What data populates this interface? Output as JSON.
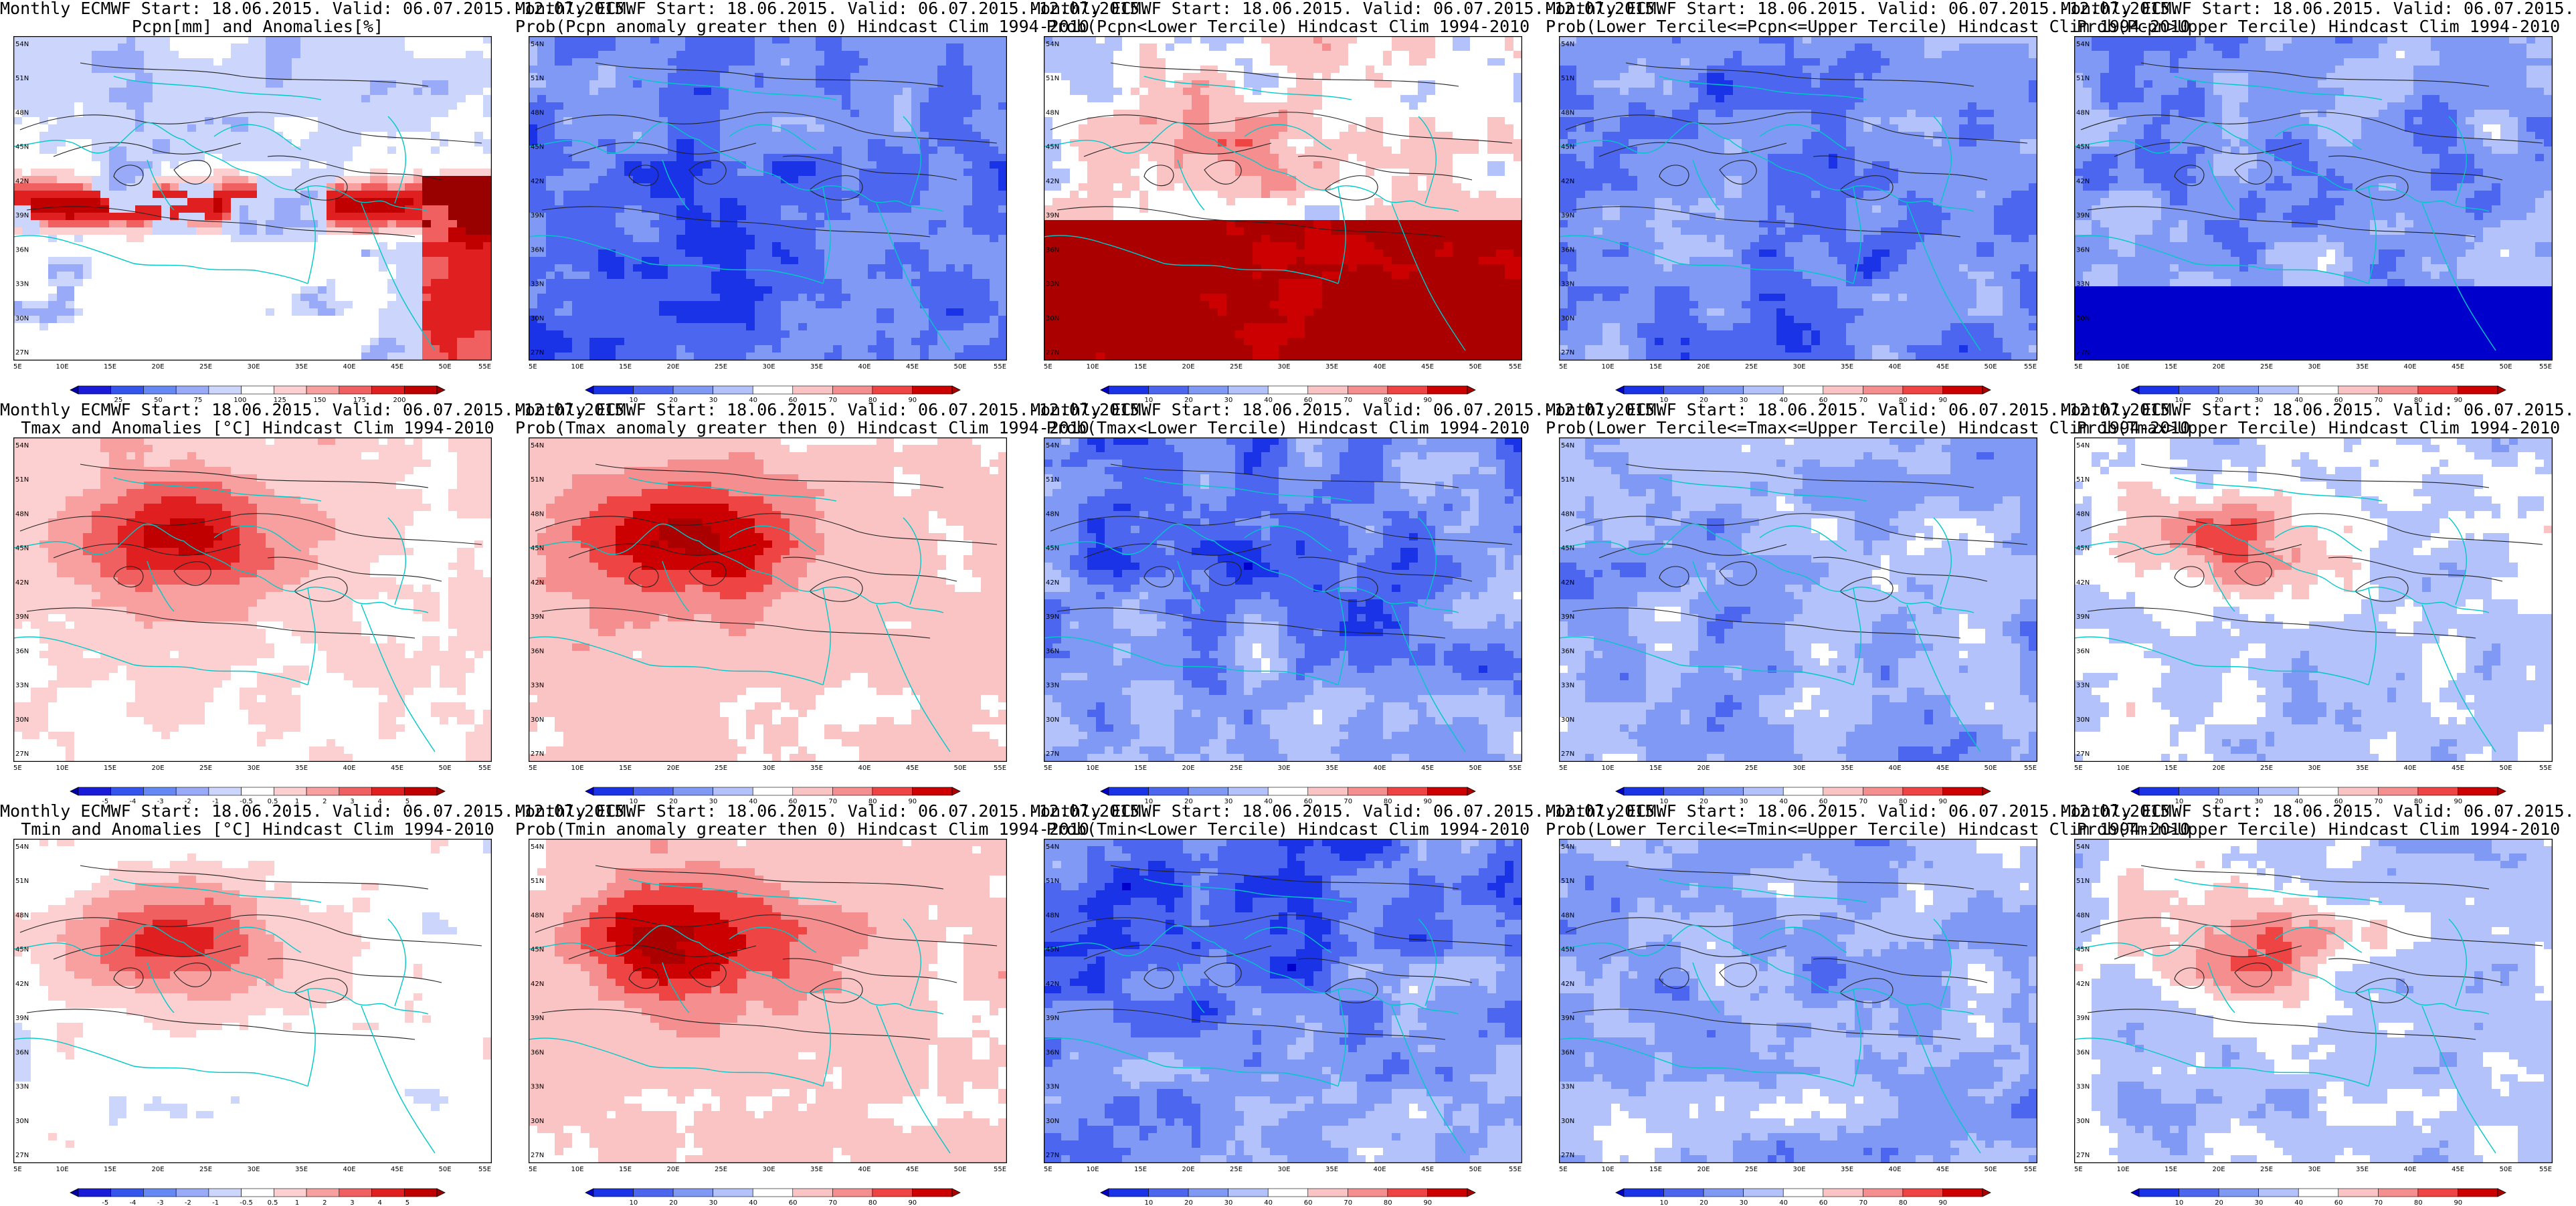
{
  "panels": [
    {
      "line1": "Monthly ECMWF Start: 18.06.2015. Valid: 06.07.2015.-12.07.2015.",
      "line2": "Pcpn[mm] and Anomalies[%]",
      "scheme": "pan",
      "pattern": "pcpn_anom",
      "colorbar": [
        "25",
        "50",
        "75",
        "100",
        "125",
        "150",
        "175",
        "200"
      ]
    },
    {
      "line1": "Monthly ECMWF Start: 18.06.2015. Valid: 06.07.2015.-12.07.2015.",
      "line2": "Prob(Pcpn anomaly greater then 0) Hindcast Clim 1994-2010",
      "scheme": "prob",
      "pattern": "pcpn_gt0",
      "colorbar": [
        "10",
        "20",
        "30",
        "40",
        "60",
        "70",
        "80",
        "90"
      ]
    },
    {
      "line1": "Monthly ECMWF Start: 18.06.2015. Valid: 06.07.2015.-12.07.2015.",
      "line2": "Prob(Pcpn<Lower Tercile) Hindcast Clim 1994-2010",
      "scheme": "prob",
      "pattern": "pcpn_low",
      "colorbar": [
        "10",
        "20",
        "30",
        "40",
        "60",
        "70",
        "80",
        "90"
      ]
    },
    {
      "line1": "Monthly ECMWF Start: 18.06.2015. Valid: 06.07.2015.-12.07.2015.",
      "line2": "Prob(Lower Tercile<=Pcpn<=Upper Tercile) Hindcast Clim 1994-2010",
      "scheme": "prob",
      "pattern": "pcpn_mid",
      "colorbar": [
        "10",
        "20",
        "30",
        "40",
        "60",
        "70",
        "80",
        "90"
      ]
    },
    {
      "line1": "Monthly ECMWF Start: 18.06.2015. Valid: 06.07.2015.-12.07.2015.",
      "line2": "Prob(Pcpn>Upper Tercile) Hindcast Clim 1994-2010",
      "scheme": "prob",
      "pattern": "pcpn_up",
      "colorbar": [
        "10",
        "20",
        "30",
        "40",
        "60",
        "70",
        "80",
        "90"
      ]
    },
    {
      "line1": "Monthly ECMWF Start: 18.06.2015. Valid: 06.07.2015.-12.07.2015.",
      "line2": "Tmax and Anomalies [°C] Hindcast Clim 1994-2010",
      "scheme": "anom",
      "pattern": "warm",
      "colorbar": [
        "-5",
        "-4",
        "-3",
        "-2",
        "-1",
        "-0.5",
        "0.5",
        "1",
        "2",
        "3",
        "4",
        "5"
      ]
    },
    {
      "line1": "Monthly ECMWF Start: 18.06.2015. Valid: 06.07.2015.-12.07.2015.",
      "line2": "Prob(Tmax anomaly greater then 0) Hindcast Clim 1994-2010",
      "scheme": "prob",
      "pattern": "warm_prob",
      "colorbar": [
        "10",
        "20",
        "30",
        "40",
        "60",
        "70",
        "80",
        "90"
      ]
    },
    {
      "line1": "Monthly ECMWF Start: 18.06.2015. Valid: 06.07.2015.-12.07.2015.",
      "line2": "Prob(Tmax<Lower Tercile) Hindcast Clim 1994-2010",
      "scheme": "prob",
      "pattern": "cold_low",
      "colorbar": [
        "10",
        "20",
        "30",
        "40",
        "60",
        "70",
        "80",
        "90"
      ]
    },
    {
      "line1": "Monthly ECMWF Start: 18.06.2015. Valid: 06.07.2015.-12.07.2015.",
      "line2": "Prob(Lower Tercile<=Tmax<=Upper Tercile) Hindcast Clim 1994-2010",
      "scheme": "prob",
      "pattern": "mid_mixed",
      "colorbar": [
        "10",
        "20",
        "30",
        "40",
        "60",
        "70",
        "80",
        "90"
      ]
    },
    {
      "line1": "Monthly ECMWF Start: 18.06.2015. Valid: 06.07.2015.-12.07.2015.",
      "line2": "Prob(Tmax>Upper Tercile) Hindcast Clim 1994-2010",
      "scheme": "prob",
      "pattern": "warm_up",
      "colorbar": [
        "10",
        "20",
        "30",
        "40",
        "60",
        "70",
        "80",
        "90"
      ]
    },
    {
      "line1": "Monthly ECMWF Start: 18.06.2015. Valid: 06.07.2015.-12.07.2015.",
      "line2": "Tmin and Anomalies [°C] Hindcast Clim 1994-2010",
      "scheme": "anom",
      "pattern": "warm_light",
      "colorbar": [
        "-5",
        "-4",
        "-3",
        "-2",
        "-1",
        "-0.5",
        "0.5",
        "1",
        "2",
        "3",
        "4",
        "5"
      ]
    },
    {
      "line1": "Monthly ECMWF Start: 18.06.2015. Valid: 06.07.2015.-12.07.2015.",
      "line2": "Prob(Tmin anomaly greater then 0) Hindcast Clim 1994-2010",
      "scheme": "prob",
      "pattern": "warm_prob",
      "colorbar": [
        "10",
        "20",
        "30",
        "40",
        "60",
        "70",
        "80",
        "90"
      ]
    },
    {
      "line1": "Monthly ECMWF Start: 18.06.2015. Valid: 06.07.2015.-12.07.2015.",
      "line2": "Prob(Tmin<Lower Tercile) Hindcast Clim 1994-2010",
      "scheme": "prob",
      "pattern": "cold_low",
      "colorbar": [
        "10",
        "20",
        "30",
        "40",
        "60",
        "70",
        "80",
        "90"
      ]
    },
    {
      "line1": "Monthly ECMWF Start: 18.06.2015. Valid: 06.07.2015.-12.07.2015.",
      "line2": "Prob(Lower Tercile<=Tmin<=Upper Tercile) Hindcast Clim 1994-2010",
      "scheme": "prob",
      "pattern": "mid_mixed",
      "colorbar": [
        "10",
        "20",
        "30",
        "40",
        "60",
        "70",
        "80",
        "90"
      ]
    },
    {
      "line1": "Monthly ECMWF Start: 18.06.2015. Valid: 06.07.2015.-12.07.2015.",
      "line2": "Prob(Tmin>Upper Tercile) Hindcast Clim 1994-2010",
      "scheme": "prob",
      "pattern": "warm_up",
      "colorbar": [
        "10",
        "20",
        "30",
        "40",
        "60",
        "70",
        "80",
        "90"
      ]
    }
  ],
  "axes": {
    "lon_labels": [
      "5E",
      "10E",
      "15E",
      "20E",
      "25E",
      "30E",
      "35E",
      "40E",
      "45E",
      "50E",
      "55E"
    ],
    "lat_labels": [
      "54N",
      "51N",
      "48N",
      "45N",
      "42N",
      "39N",
      "36N",
      "33N",
      "30N",
      "27N"
    ]
  },
  "colors": {
    "prob": [
      "#0000cc",
      "#1a33e6",
      "#4d66f0",
      "#8099f5",
      "#b3c2fa",
      "#ffffff",
      "#fbc4c4",
      "#f58f8f",
      "#ee4444",
      "#cc0000",
      "#aa0000"
    ],
    "anom": [
      "#0000aa",
      "#1a1ad9",
      "#3355ee",
      "#6688f5",
      "#99aaf8",
      "#ccd5fb",
      "#ffffff",
      "#fcd0d0",
      "#f8a0a0",
      "#f06060",
      "#e02020",
      "#c00000",
      "#990000"
    ],
    "coast": "#00c8c8",
    "contour": "#222222"
  }
}
